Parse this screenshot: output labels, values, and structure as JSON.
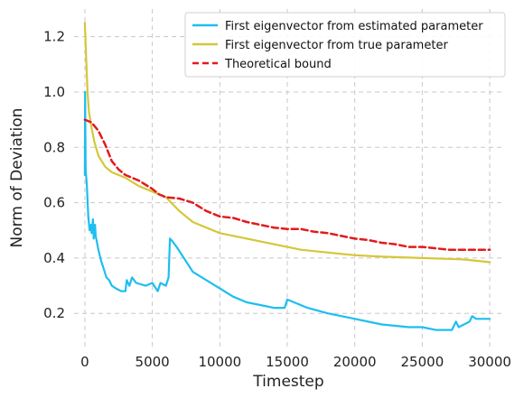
{
  "chart_data": {
    "type": "line",
    "xlabel": "Timestep",
    "ylabel": "Norm of Deviation",
    "xlim": [
      -800,
      31000
    ],
    "ylim": [
      0.08,
      1.3
    ],
    "xticks": [
      0,
      5000,
      10000,
      15000,
      20000,
      25000,
      30000
    ],
    "xtick_labels": [
      "0",
      "5000",
      "10000",
      "15000",
      "20000",
      "25000",
      "30000"
    ],
    "yticks": [
      0.2,
      0.4,
      0.6,
      0.8,
      1.0,
      1.2
    ],
    "ytick_labels": [
      "0.2",
      "0.4",
      "0.6",
      "0.8",
      "1.0",
      "1.2"
    ],
    "grid": true,
    "legend_position": "top-right",
    "series": [
      {
        "name": "First eigenvector from estimated parameter",
        "color": "#1ebef0",
        "style": "solid",
        "points": [
          [
            0,
            0.7
          ],
          [
            20,
            1.0
          ],
          [
            60,
            0.72
          ],
          [
            150,
            0.66
          ],
          [
            250,
            0.55
          ],
          [
            350,
            0.5
          ],
          [
            450,
            0.52
          ],
          [
            500,
            0.49
          ],
          [
            600,
            0.54
          ],
          [
            650,
            0.47
          ],
          [
            750,
            0.52
          ],
          [
            800,
            0.48
          ],
          [
            1000,
            0.43
          ],
          [
            1200,
            0.39
          ],
          [
            1400,
            0.36
          ],
          [
            1600,
            0.33
          ],
          [
            1800,
            0.32
          ],
          [
            2000,
            0.3
          ],
          [
            2300,
            0.29
          ],
          [
            2700,
            0.28
          ],
          [
            3000,
            0.28
          ],
          [
            3100,
            0.32
          ],
          [
            3300,
            0.3
          ],
          [
            3500,
            0.33
          ],
          [
            3800,
            0.31
          ],
          [
            4500,
            0.3
          ],
          [
            5000,
            0.31
          ],
          [
            5400,
            0.28
          ],
          [
            5600,
            0.31
          ],
          [
            6000,
            0.3
          ],
          [
            6200,
            0.33
          ],
          [
            6300,
            0.47
          ],
          [
            6500,
            0.46
          ],
          [
            6800,
            0.44
          ],
          [
            7200,
            0.41
          ],
          [
            7600,
            0.38
          ],
          [
            8000,
            0.35
          ],
          [
            9000,
            0.32
          ],
          [
            10000,
            0.29
          ],
          [
            11000,
            0.26
          ],
          [
            12000,
            0.24
          ],
          [
            13000,
            0.23
          ],
          [
            14000,
            0.22
          ],
          [
            14800,
            0.22
          ],
          [
            15000,
            0.25
          ],
          [
            15500,
            0.24
          ],
          [
            16500,
            0.22
          ],
          [
            18000,
            0.2
          ],
          [
            20000,
            0.18
          ],
          [
            22000,
            0.16
          ],
          [
            24000,
            0.15
          ],
          [
            25000,
            0.15
          ],
          [
            26000,
            0.14
          ],
          [
            27200,
            0.14
          ],
          [
            27500,
            0.17
          ],
          [
            27700,
            0.15
          ],
          [
            28500,
            0.17
          ],
          [
            28700,
            0.19
          ],
          [
            29000,
            0.18
          ],
          [
            30000,
            0.18
          ]
        ]
      },
      {
        "name": "First eigenvector from true parameter",
        "color": "#d4c73a",
        "style": "solid",
        "points": [
          [
            0,
            1.25
          ],
          [
            100,
            1.12
          ],
          [
            200,
            1.0
          ],
          [
            300,
            0.93
          ],
          [
            500,
            0.87
          ],
          [
            700,
            0.82
          ],
          [
            1000,
            0.77
          ],
          [
            1500,
            0.73
          ],
          [
            2000,
            0.71
          ],
          [
            3000,
            0.69
          ],
          [
            4000,
            0.66
          ],
          [
            5000,
            0.64
          ],
          [
            6000,
            0.62
          ],
          [
            7000,
            0.57
          ],
          [
            8000,
            0.53
          ],
          [
            9000,
            0.51
          ],
          [
            10000,
            0.49
          ],
          [
            12000,
            0.47
          ],
          [
            14000,
            0.45
          ],
          [
            16000,
            0.43
          ],
          [
            18000,
            0.42
          ],
          [
            20000,
            0.41
          ],
          [
            22000,
            0.405
          ],
          [
            25000,
            0.4
          ],
          [
            28000,
            0.395
          ],
          [
            30000,
            0.385
          ]
        ]
      },
      {
        "name": "Theoretical bound",
        "color": "#e31a1c",
        "style": "dashed",
        "points": [
          [
            0,
            0.9
          ],
          [
            500,
            0.89
          ],
          [
            1000,
            0.86
          ],
          [
            1500,
            0.81
          ],
          [
            2000,
            0.75
          ],
          [
            2500,
            0.72
          ],
          [
            3000,
            0.7
          ],
          [
            4000,
            0.68
          ],
          [
            5000,
            0.65
          ],
          [
            5500,
            0.63
          ],
          [
            6000,
            0.62
          ],
          [
            7000,
            0.615
          ],
          [
            8000,
            0.6
          ],
          [
            9000,
            0.57
          ],
          [
            10000,
            0.55
          ],
          [
            11000,
            0.545
          ],
          [
            12000,
            0.53
          ],
          [
            13000,
            0.52
          ],
          [
            14000,
            0.51
          ],
          [
            15000,
            0.505
          ],
          [
            16000,
            0.505
          ],
          [
            17000,
            0.495
          ],
          [
            18000,
            0.49
          ],
          [
            19000,
            0.48
          ],
          [
            20000,
            0.47
          ],
          [
            21000,
            0.465
          ],
          [
            22000,
            0.455
          ],
          [
            23000,
            0.45
          ],
          [
            24000,
            0.44
          ],
          [
            25000,
            0.44
          ],
          [
            26000,
            0.435
          ],
          [
            27000,
            0.43
          ],
          [
            28000,
            0.43
          ],
          [
            29000,
            0.43
          ],
          [
            30000,
            0.43
          ]
        ]
      }
    ]
  }
}
